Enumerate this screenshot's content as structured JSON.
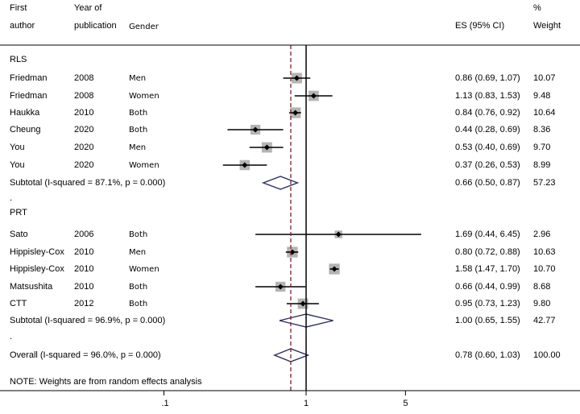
{
  "header": {
    "col1_line1": "First",
    "col1_line2": "author",
    "col2_line1": "Year of",
    "col2_line2": "publication",
    "col3": "Gender",
    "es": "ES (95% CI)",
    "weight_line1": "%",
    "weight_line2": "Weight"
  },
  "footer_note": "NOTE: Weights are from random effects analysis",
  "colors": {
    "marker_box": "#b4b4b4",
    "diamond": "#2e2e5c",
    "null_line": "#000000",
    "overall_line": "#8b1a2b"
  },
  "chart_data": {
    "type": "forest",
    "x_scale": "log",
    "x_ticks": [
      {
        "value": 0.1,
        "label": ".1"
      },
      {
        "value": 1,
        "label": "1"
      },
      {
        "value": 5,
        "label": "5"
      }
    ],
    "null_value": 1,
    "overall_es": 0.78,
    "groups": [
      {
        "name": "RLS",
        "studies": [
          {
            "author": "Friedman",
            "year": "2008",
            "gender": "Men",
            "es": 0.86,
            "lo": 0.69,
            "hi": 1.07,
            "es_text": "0.86 (0.69, 1.07)",
            "weight": "10.07"
          },
          {
            "author": "Friedman",
            "year": "2008",
            "gender": "Women",
            "es": 1.13,
            "lo": 0.83,
            "hi": 1.53,
            "es_text": "1.13 (0.83, 1.53)",
            "weight": "9.48"
          },
          {
            "author": "Haukka",
            "year": "2010",
            "gender": "Both",
            "es": 0.84,
            "lo": 0.76,
            "hi": 0.92,
            "es_text": "0.84 (0.76, 0.92)",
            "weight": "10.64"
          },
          {
            "author": "Cheung",
            "year": "2020",
            "gender": "Both",
            "es": 0.44,
            "lo": 0.28,
            "hi": 0.69,
            "es_text": "0.44 (0.28, 0.69)",
            "weight": "8.36"
          },
          {
            "author": "You",
            "year": "2020",
            "gender": "Men",
            "es": 0.53,
            "lo": 0.4,
            "hi": 0.69,
            "es_text": "0.53 (0.40, 0.69)",
            "weight": "9.70"
          },
          {
            "author": "You",
            "year": "2020",
            "gender": "Women",
            "es": 0.37,
            "lo": 0.26,
            "hi": 0.53,
            "es_text": "0.37 (0.26, 0.53)",
            "weight": "8.99"
          }
        ],
        "subtotal": {
          "label": "Subtotal  (I-squared = 87.1%, p = 0.000)",
          "es": 0.66,
          "lo": 0.5,
          "hi": 0.87,
          "es_text": "0.66 (0.50, 0.87)",
          "weight": "57.23"
        }
      },
      {
        "name": "PRT",
        "studies": [
          {
            "author": "Sato",
            "year": "2006",
            "gender": "Both",
            "es": 1.69,
            "lo": 0.44,
            "hi": 6.45,
            "es_text": "1.69 (0.44, 6.45)",
            "weight": "2.96"
          },
          {
            "author": "Hippisley-Cox",
            "year": "2010",
            "gender": "Men",
            "es": 0.8,
            "lo": 0.72,
            "hi": 0.88,
            "es_text": "0.80 (0.72, 0.88)",
            "weight": "10.63"
          },
          {
            "author": "Hippisley-Cox",
            "year": "2010",
            "gender": "Women",
            "es": 1.58,
            "lo": 1.47,
            "hi": 1.7,
            "es_text": "1.58 (1.47, 1.70)",
            "weight": "10.70"
          },
          {
            "author": "Matsushita",
            "year": "2010",
            "gender": "Both",
            "es": 0.66,
            "lo": 0.44,
            "hi": 0.99,
            "es_text": "0.66 (0.44, 0.99)",
            "weight": "8.68"
          },
          {
            "author": "CTT",
            "year": "2012",
            "gender": "Both",
            "es": 0.95,
            "lo": 0.73,
            "hi": 1.23,
            "es_text": "0.95 (0.73, 1.23)",
            "weight": "9.80"
          }
        ],
        "subtotal": {
          "label": "Subtotal  (I-squared = 96.9%, p = 0.000)",
          "es": 1.0,
          "lo": 0.65,
          "hi": 1.55,
          "es_text": "1.00 (0.65, 1.55)",
          "weight": "42.77"
        }
      }
    ],
    "overall": {
      "label": "Overall  (I-squared = 96.0%, p = 0.000)",
      "es": 0.78,
      "lo": 0.6,
      "hi": 1.03,
      "es_text": "0.78 (0.60, 1.03)",
      "weight": "100.00"
    }
  }
}
